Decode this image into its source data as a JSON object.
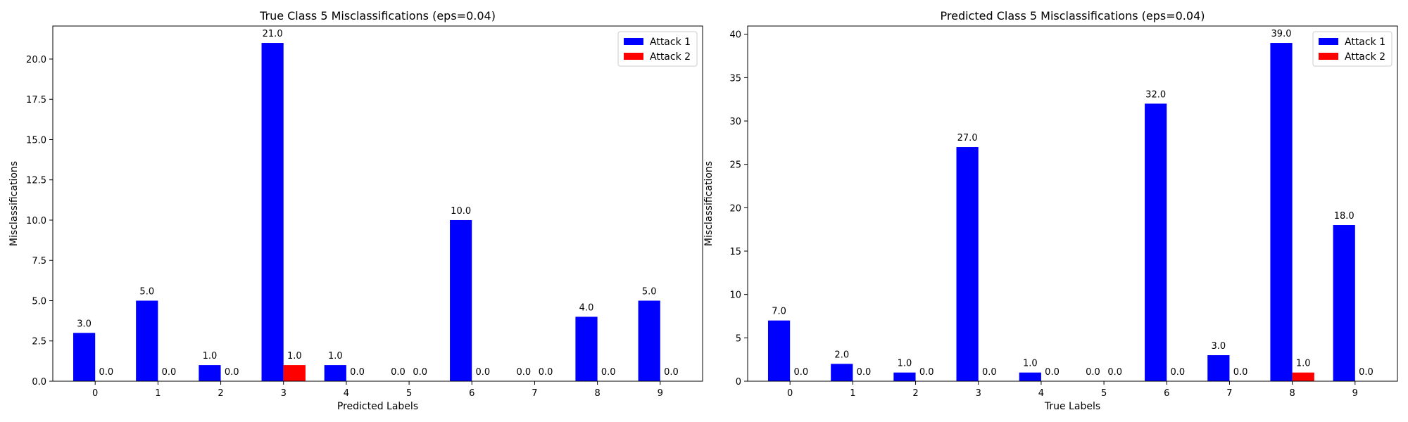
{
  "colors": {
    "attack1": "#0000ff",
    "attack2": "#ff0000"
  },
  "chart_data": [
    {
      "type": "bar",
      "title": "True Class 5 Misclassifications (eps=0.04)",
      "xlabel": "Predicted Labels",
      "ylabel": "Misclassifications",
      "categories": [
        "0",
        "1",
        "2",
        "3",
        "4",
        "5",
        "6",
        "7",
        "8",
        "9"
      ],
      "series": [
        {
          "name": "Attack 1",
          "values": [
            3,
            5,
            1,
            21,
            1,
            0,
            10,
            0,
            4,
            5
          ],
          "labels": [
            "3.0",
            "5.0",
            "1.0",
            "21.0",
            "1.0",
            "0.0",
            "10.0",
            "0.0",
            "4.0",
            "5.0"
          ]
        },
        {
          "name": "Attack 2",
          "values": [
            0,
            0,
            0,
            1,
            0,
            0,
            0,
            0,
            0,
            0
          ],
          "labels": [
            "0.0",
            "0.0",
            "0.0",
            "1.0",
            "0.0",
            "0.0",
            "0.0",
            "0.0",
            "0.0",
            "0.0"
          ]
        }
      ],
      "ylim": [
        0,
        22.05
      ],
      "yticks": [
        0,
        2.5,
        5,
        7.5,
        10,
        12.5,
        15,
        17.5,
        20
      ],
      "ytick_labels": [
        "0.0",
        "2.5",
        "5.0",
        "7.5",
        "10.0",
        "12.5",
        "15.0",
        "17.5",
        "20.0"
      ],
      "grid": false,
      "legend": "top-right"
    },
    {
      "type": "bar",
      "title": "Predicted Class 5 Misclassifications (eps=0.04)",
      "xlabel": "True Labels",
      "ylabel": "Misclassifications",
      "categories": [
        "0",
        "1",
        "2",
        "3",
        "4",
        "5",
        "6",
        "7",
        "8",
        "9"
      ],
      "series": [
        {
          "name": "Attack 1",
          "values": [
            7,
            2,
            1,
            27,
            1,
            0,
            32,
            3,
            39,
            18
          ],
          "labels": [
            "7.0",
            "2.0",
            "1.0",
            "27.0",
            "1.0",
            "0.0",
            "32.0",
            "3.0",
            "39.0",
            "18.0"
          ]
        },
        {
          "name": "Attack 2",
          "values": [
            0,
            0,
            0,
            0,
            0,
            0,
            0,
            0,
            1,
            0
          ],
          "labels": [
            "0.0",
            "0.0",
            "0.0",
            "0.0",
            "0.0",
            "0.0",
            "0.0",
            "0.0",
            "1.0",
            "0.0"
          ]
        }
      ],
      "ylim": [
        0,
        40.95
      ],
      "yticks": [
        0,
        5,
        10,
        15,
        20,
        25,
        30,
        35,
        40
      ],
      "ytick_labels": [
        "0",
        "5",
        "10",
        "15",
        "20",
        "25",
        "30",
        "35",
        "40"
      ],
      "grid": false,
      "legend": "top-right"
    }
  ]
}
